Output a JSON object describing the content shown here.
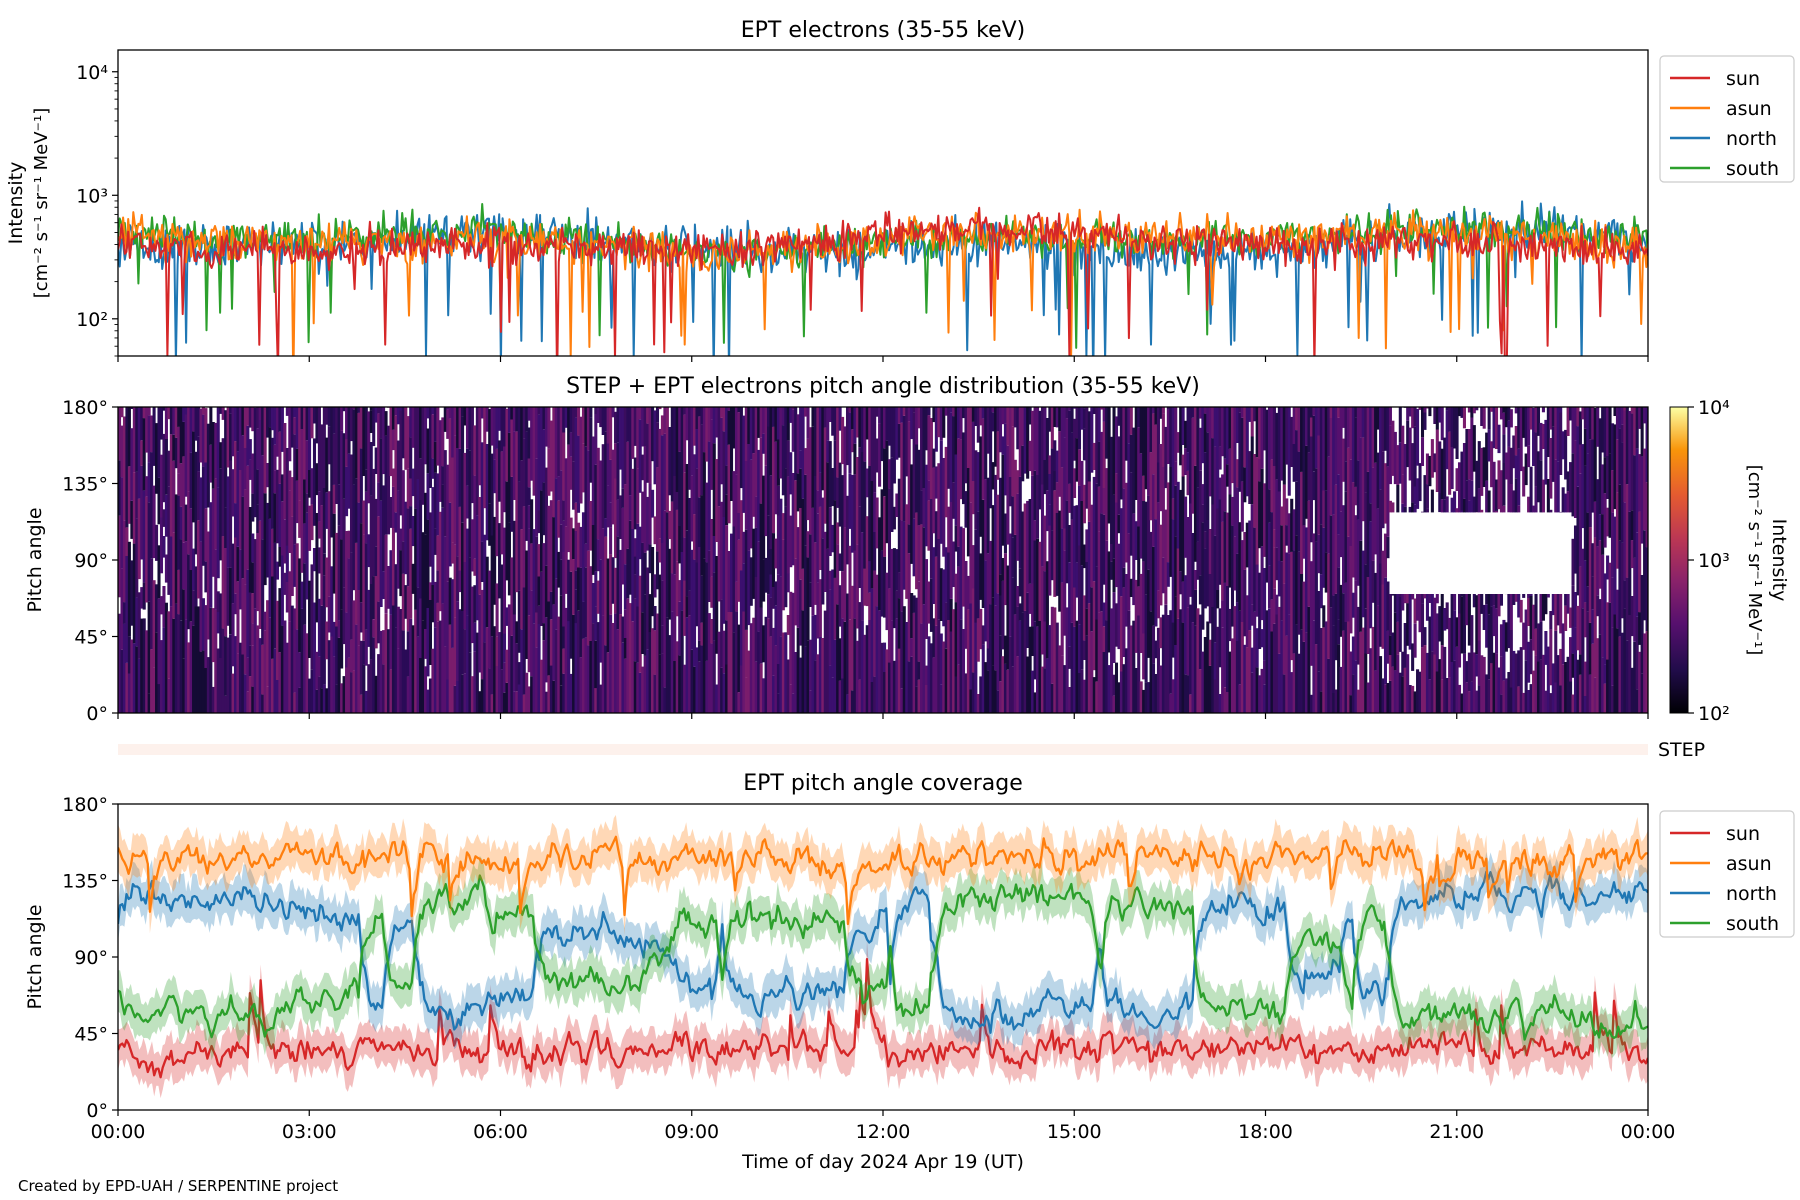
{
  "footer": "Created by EPD-UAH / SERPENTINE project",
  "chart_data": [
    {
      "id": "intensity",
      "type": "line",
      "title": "EPT electrons (35-55 keV)",
      "ylabel": [
        "Intensity",
        "[cm⁻² s⁻¹ sr⁻¹ MeV⁻¹]"
      ],
      "yscale": "log",
      "ylim": [
        50,
        15000
      ],
      "yticks": [
        100,
        1000,
        10000
      ],
      "ytick_labels": [
        "10²",
        "10³",
        "10⁴"
      ],
      "xlim": [
        "2024-04-19 00:00",
        "2024-04-20 00:00"
      ],
      "legend_placement": "outside right",
      "series": [
        {
          "name": "sun",
          "color": "#d62728",
          "level": 420,
          "spread": 0.28
        },
        {
          "name": "asun",
          "color": "#ff7f0e",
          "level": 430,
          "spread": 0.3
        },
        {
          "name": "north",
          "color": "#1f77b4",
          "level": 400,
          "spread": 0.33
        },
        {
          "name": "south",
          "color": "#2ca02c",
          "level": 440,
          "spread": 0.27
        }
      ],
      "series_order": [
        "north",
        "south",
        "asun",
        "sun"
      ],
      "samples": 900
    },
    {
      "id": "pad",
      "type": "heatmap",
      "title": "STEP + EPT electrons pitch angle distribution (35-55 keV)",
      "ylabel": "Pitch angle",
      "ylim": [
        0,
        180
      ],
      "yticks": [
        0,
        45,
        90,
        135,
        180
      ],
      "ytick_labels": [
        "0°",
        "45°",
        "90°",
        "135°",
        "180°"
      ],
      "xlim": [
        "2024-04-19 00:00",
        "2024-04-20 00:00"
      ],
      "colormap": "inferno",
      "colorbar": {
        "label": [
          "Intensity",
          "[cm⁻² s⁻¹ sr⁻¹ MeV⁻¹]"
        ],
        "scale": "log",
        "range": [
          100,
          10000
        ],
        "ticks": [
          100,
          1000,
          10000
        ],
        "tick_labels": [
          "10²",
          "10³",
          "10⁴"
        ]
      },
      "typical_intensity": 300,
      "columns": 620
    },
    {
      "id": "step",
      "type": "heatmap",
      "label": "STEP",
      "xlim": [
        "2024-04-19 00:00",
        "2024-04-20 00:00"
      ],
      "color": "#fdf1ec"
    },
    {
      "id": "coverage",
      "type": "line",
      "title": "EPT pitch angle coverage",
      "ylabel": "Pitch angle",
      "xlabel": "Time of day 2024 Apr 19 (UT)",
      "ylim": [
        0,
        180
      ],
      "yticks": [
        0,
        45,
        90,
        135,
        180
      ],
      "ytick_labels": [
        "0°",
        "45°",
        "90°",
        "135°",
        "180°"
      ],
      "xlim": [
        "2024-04-19 00:00",
        "2024-04-20 00:00"
      ],
      "xtick_labels": [
        "00:00",
        "03:00",
        "06:00",
        "09:00",
        "12:00",
        "15:00",
        "18:00",
        "21:00",
        "00:00"
      ],
      "legend_placement": "outside right",
      "series": [
        {
          "name": "sun",
          "color": "#d62728",
          "base": 35
        },
        {
          "name": "asun",
          "color": "#ff7f0e",
          "base": 148
        },
        {
          "name": "north",
          "color": "#1f77b4",
          "base": 100
        },
        {
          "name": "south",
          "color": "#2ca02c",
          "base": 80
        }
      ],
      "samples": 720
    }
  ]
}
